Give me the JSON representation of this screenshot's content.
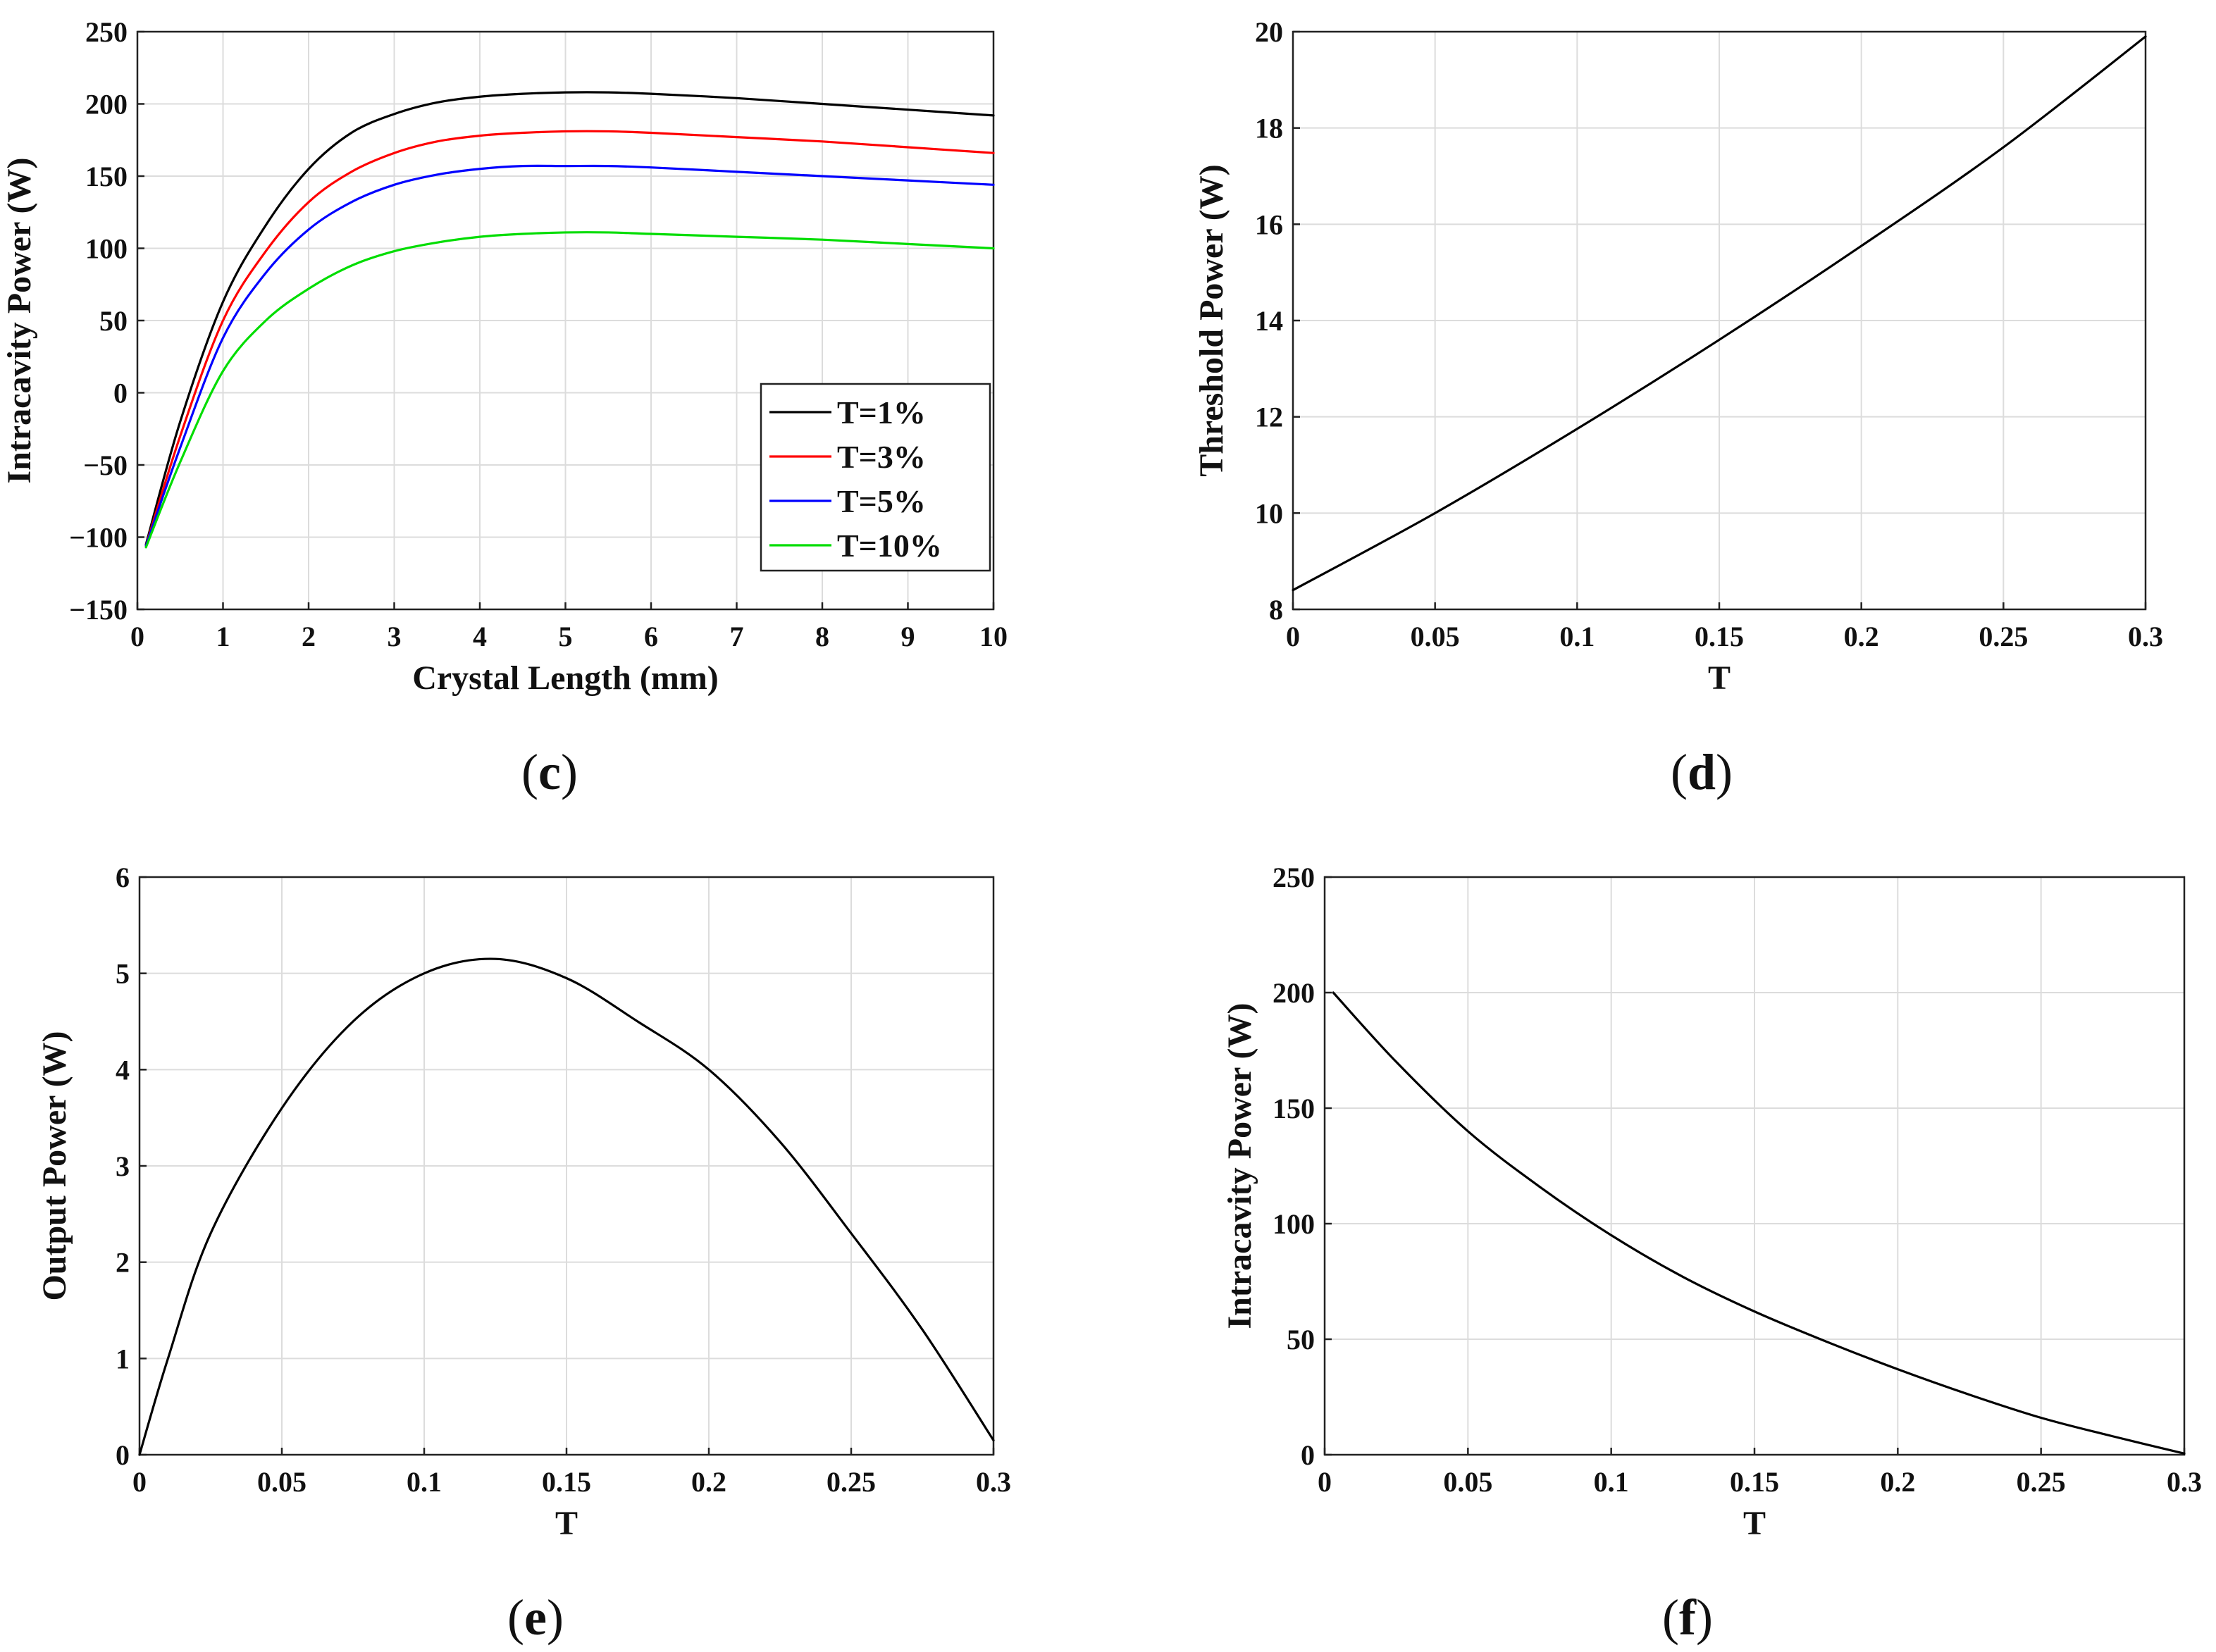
{
  "chart_data": [
    {
      "id": "c",
      "type": "line",
      "panel_label": "c",
      "xlabel": "Crystal Length (mm)",
      "ylabel": "Intracavity Power (W)",
      "xlim": [
        0,
        10
      ],
      "ylim": [
        -150,
        250
      ],
      "xticks": [
        0,
        1,
        2,
        3,
        4,
        5,
        6,
        7,
        8,
        9,
        10
      ],
      "yticks": [
        -150,
        -100,
        -50,
        0,
        50,
        100,
        150,
        200,
        250
      ],
      "xtick_labels": [
        "0",
        "1",
        "2",
        "3",
        "4",
        "5",
        "6",
        "7",
        "8",
        "9",
        "10"
      ],
      "ytick_labels": [
        "−150",
        "−100",
        "−50",
        "0",
        "50",
        "100",
        "150",
        "200",
        "250"
      ],
      "grid": true,
      "legend": "inside-right",
      "series": [
        {
          "name": "T=1%",
          "color": "#000000",
          "x": [
            0.1,
            0.5,
            1,
            1.5,
            2,
            2.5,
            3,
            3.5,
            4,
            4.5,
            5,
            5.5,
            6,
            7,
            8,
            9,
            10
          ],
          "y": [
            -105,
            -20,
            63,
            116,
            155,
            180,
            193,
            201,
            205,
            207,
            208,
            208,
            207,
            204,
            200,
            196,
            192
          ]
        },
        {
          "name": "T=3%",
          "color": "#ff0000",
          "x": [
            0.1,
            0.5,
            1,
            1.5,
            2,
            2.5,
            3,
            3.5,
            4,
            4.5,
            5,
            5.5,
            6,
            7,
            8,
            9,
            10
          ],
          "y": [
            -106,
            -30,
            50,
            98,
            132,
            153,
            166,
            174,
            178,
            180,
            181,
            181,
            180,
            177,
            174,
            170,
            166
          ]
        },
        {
          "name": "T=5%",
          "color": "#0000ff",
          "x": [
            0.1,
            0.5,
            1,
            1.5,
            2,
            2.5,
            3,
            3.5,
            4,
            4.5,
            5,
            5.5,
            6,
            7,
            8,
            9,
            10
          ],
          "y": [
            -106,
            -38,
            38,
            83,
            113,
            132,
            144,
            151,
            155,
            157,
            157,
            157,
            156,
            153,
            150,
            147,
            144
          ]
        },
        {
          "name": "T=10%",
          "color": "#00dd00",
          "x": [
            0.1,
            0.5,
            1,
            1.5,
            2,
            2.5,
            3,
            3.5,
            4,
            4.5,
            5,
            5.5,
            6,
            7,
            8,
            9,
            10
          ],
          "y": [
            -107,
            -48,
            15,
            50,
            72,
            88,
            98,
            104,
            108,
            110,
            111,
            111,
            110,
            108,
            106,
            103,
            100
          ]
        }
      ]
    },
    {
      "id": "d",
      "type": "line",
      "panel_label": "d",
      "xlabel": "T",
      "ylabel": "Threshold Power (W)",
      "xlim": [
        0,
        0.3
      ],
      "ylim": [
        8,
        20
      ],
      "xticks": [
        0,
        0.05,
        0.1,
        0.15,
        0.2,
        0.25,
        0.3
      ],
      "yticks": [
        8,
        10,
        12,
        14,
        16,
        18,
        20
      ],
      "xtick_labels": [
        "0",
        "0.05",
        "0.1",
        "0.15",
        "0.2",
        "0.25",
        "0.3"
      ],
      "ytick_labels": [
        "8",
        "10",
        "12",
        "14",
        "16",
        "18",
        "20"
      ],
      "grid": true,
      "series": [
        {
          "name": "Threshold Power",
          "color": "#000000",
          "x": [
            0,
            0.05,
            0.1,
            0.15,
            0.2,
            0.25,
            0.3
          ],
          "y": [
            8.4,
            10.0,
            11.75,
            13.6,
            15.55,
            17.6,
            19.9
          ]
        }
      ]
    },
    {
      "id": "e",
      "type": "line",
      "panel_label": "e",
      "xlabel": "T",
      "ylabel": "Output Power (W)",
      "xlim": [
        0,
        0.3
      ],
      "ylim": [
        0,
        6
      ],
      "xticks": [
        0,
        0.05,
        0.1,
        0.15,
        0.2,
        0.25,
        0.3
      ],
      "yticks": [
        0,
        1,
        2,
        3,
        4,
        5,
        6
      ],
      "xtick_labels": [
        "0",
        "0.05",
        "0.1",
        "0.15",
        "0.2",
        "0.25",
        "0.3"
      ],
      "ytick_labels": [
        "0",
        "1",
        "2",
        "3",
        "4",
        "5",
        "6"
      ],
      "grid": true,
      "series": [
        {
          "name": "Output Power",
          "color": "#000000",
          "x": [
            0,
            0.01,
            0.025,
            0.05,
            0.075,
            0.1,
            0.125,
            0.15,
            0.175,
            0.2,
            0.225,
            0.25,
            0.275,
            0.3
          ],
          "y": [
            0,
            1.0,
            2.3,
            3.6,
            4.5,
            5.0,
            5.15,
            4.95,
            4.5,
            4.0,
            3.25,
            2.3,
            1.3,
            0.15
          ]
        }
      ]
    },
    {
      "id": "f",
      "type": "line",
      "panel_label": "f",
      "xlabel": "T",
      "ylabel": "Intracavity Power (W)",
      "xlim": [
        0,
        0.3
      ],
      "ylim": [
        0,
        250
      ],
      "xticks": [
        0,
        0.05,
        0.1,
        0.15,
        0.2,
        0.25,
        0.3
      ],
      "yticks": [
        0,
        50,
        100,
        150,
        200,
        250
      ],
      "xtick_labels": [
        "0",
        "0.05",
        "0.1",
        "0.15",
        "0.2",
        "0.25",
        "0.3"
      ],
      "ytick_labels": [
        "0",
        "50",
        "100",
        "150",
        "200",
        "250"
      ],
      "grid": true,
      "series": [
        {
          "name": "Intracavity Power",
          "color": "#000000",
          "x": [
            0.003,
            0.025,
            0.05,
            0.075,
            0.1,
            0.125,
            0.15,
            0.175,
            0.2,
            0.225,
            0.25,
            0.275,
            0.3
          ],
          "y": [
            200,
            170,
            140,
            116,
            95,
            77,
            62,
            49,
            37,
            26,
            16,
            8,
            0.5
          ]
        }
      ]
    }
  ]
}
